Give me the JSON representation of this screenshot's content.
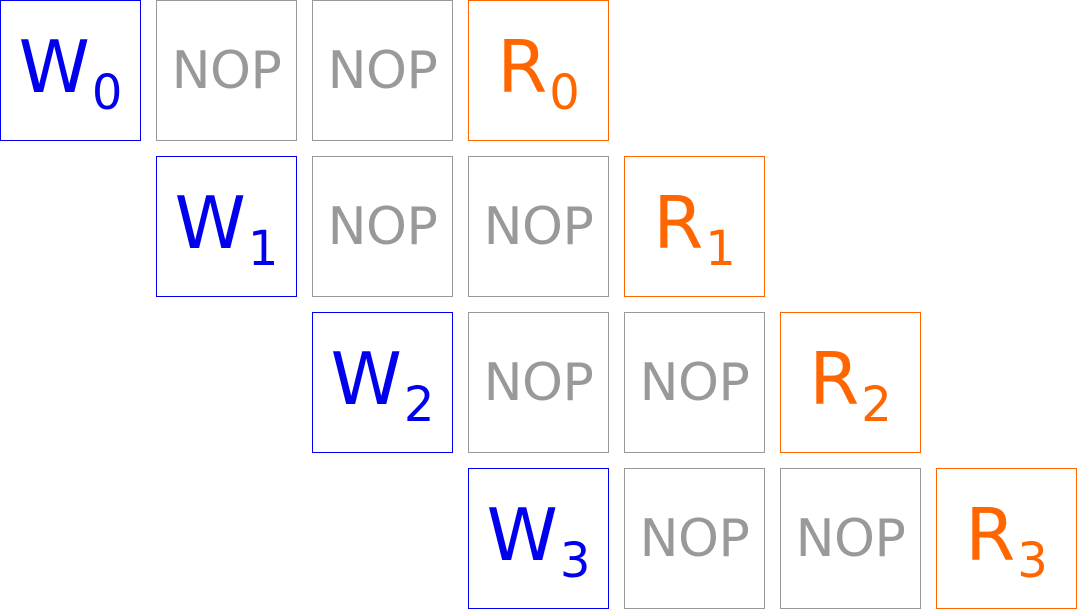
{
  "colors": {
    "write": "#0000ee",
    "nop": "#999999",
    "read": "#ff6600"
  },
  "rows": [
    {
      "name": "row-0",
      "cells": [
        {
          "kind": "write",
          "text": "W",
          "sub": "0"
        },
        {
          "kind": "nop",
          "text": "NOP"
        },
        {
          "kind": "nop",
          "text": "NOP"
        },
        {
          "kind": "read",
          "text": "R",
          "sub": "0"
        }
      ]
    },
    {
      "name": "row-1",
      "cells": [
        {
          "kind": "write",
          "text": "W",
          "sub": "1"
        },
        {
          "kind": "nop",
          "text": "NOP"
        },
        {
          "kind": "nop",
          "text": "NOP"
        },
        {
          "kind": "read",
          "text": "R",
          "sub": "1"
        }
      ]
    },
    {
      "name": "row-2",
      "cells": [
        {
          "kind": "write",
          "text": "W",
          "sub": "2"
        },
        {
          "kind": "nop",
          "text": "NOP"
        },
        {
          "kind": "nop",
          "text": "NOP"
        },
        {
          "kind": "read",
          "text": "R",
          "sub": "2"
        }
      ]
    },
    {
      "name": "row-3",
      "cells": [
        {
          "kind": "write",
          "text": "W",
          "sub": "3"
        },
        {
          "kind": "nop",
          "text": "NOP"
        },
        {
          "kind": "nop",
          "text": "NOP"
        },
        {
          "kind": "read",
          "text": "R",
          "sub": "3"
        }
      ]
    }
  ]
}
